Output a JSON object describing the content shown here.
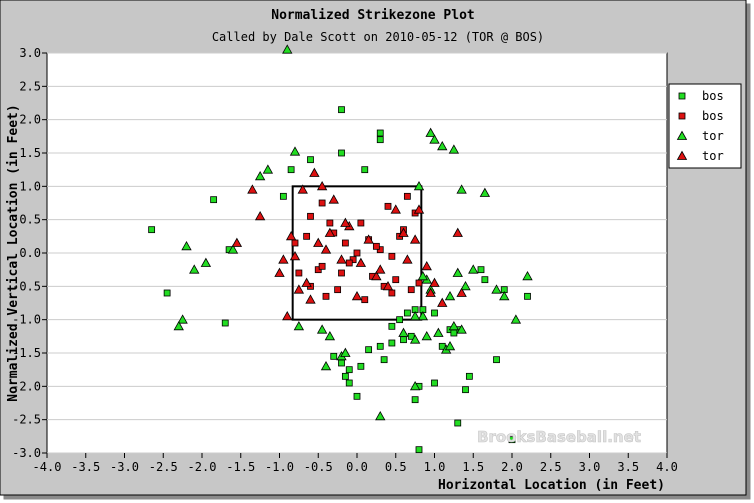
{
  "chart_data": {
    "type": "scatter",
    "title": "Normalized Strikezone Plot",
    "subtitle": "Called by Dale Scott on 2010-05-12 (TOR @ BOS)",
    "xlabel": "Horizontal Location (in Feet)",
    "ylabel": "Normalized Vertical Location (in Feet)",
    "xlim": [
      -4.0,
      4.0
    ],
    "ylim": [
      -3.0,
      3.0
    ],
    "xticks": [
      "-4.0",
      "-3.5",
      "-3.0",
      "-2.5",
      "-2.0",
      "-1.5",
      "-1.0",
      "-0.5",
      "0.0",
      "0.5",
      "1.0",
      "1.5",
      "2.0",
      "2.5",
      "3.0",
      "3.5",
      "4.0"
    ],
    "yticks": [
      "3.0",
      "2.5",
      "2.0",
      "1.5",
      "1.0",
      "0.5",
      "0.0",
      "-0.5",
      "-1.0",
      "-1.5",
      "-2.0",
      "-2.5",
      "-3.0"
    ],
    "grid": true,
    "legend_position": "right",
    "watermark": "BrooksBaseball.net",
    "strike_zone": {
      "x": [
        -0.83,
        0.83
      ],
      "y": [
        -1.0,
        1.0
      ]
    },
    "colors": {
      "ball": "#22dd22",
      "strike": "#dd1111",
      "frame": "#000000",
      "grid": "#cccccc"
    },
    "series": [
      {
        "name": "bos",
        "shape": "square",
        "color": "#22dd22",
        "x": [
          -2.65,
          -2.45,
          -1.65,
          -1.7,
          -1.85,
          -0.95,
          -0.85,
          -0.6,
          -0.2,
          -0.2,
          0.1,
          0.3,
          0.3,
          -0.1,
          -0.15,
          -0.1,
          0.0,
          0.15,
          0.3,
          0.35,
          0.45,
          0.6,
          0.75,
          0.8,
          0.8,
          -0.2,
          -0.3,
          0.05,
          0.7,
          0.85,
          0.95,
          1.0,
          1.2,
          1.3,
          1.4,
          1.8,
          1.65,
          1.6,
          1.9,
          2.0,
          2.2,
          1.0,
          1.3,
          1.15,
          1.1,
          1.25,
          1.45,
          0.75,
          0.65,
          0.55,
          0.45
        ],
        "y": [
          0.35,
          -0.6,
          0.05,
          -1.05,
          0.8,
          0.85,
          1.25,
          1.4,
          2.15,
          1.5,
          1.25,
          1.8,
          1.7,
          -1.75,
          -1.85,
          -1.95,
          -2.15,
          -1.45,
          -1.4,
          -1.6,
          -1.35,
          -1.3,
          -2.2,
          -2.0,
          -2.95,
          -1.65,
          -1.55,
          -1.7,
          -1.25,
          -0.85,
          -0.6,
          -0.9,
          -1.15,
          -2.55,
          -2.05,
          -1.6,
          -0.4,
          -0.25,
          -0.55,
          -2.8,
          -0.65,
          -1.95,
          -1.15,
          -1.45,
          -1.4,
          -1.2,
          -1.85,
          -0.85,
          -0.9,
          -1.0,
          -1.1
        ]
      },
      {
        "name": "bos",
        "shape": "square",
        "color": "#dd1111",
        "x": [
          -0.75,
          -0.6,
          -0.45,
          -0.3,
          -0.15,
          -0.05,
          0.05,
          0.15,
          0.3,
          0.45,
          0.55,
          0.65,
          0.75,
          -0.6,
          -0.4,
          -0.25,
          -0.1,
          0.1,
          0.2,
          0.35,
          0.5,
          0.6,
          0.7,
          -0.65,
          -0.35,
          -0.2,
          0.0,
          0.25,
          0.4,
          -0.5,
          -0.8,
          0.8,
          -0.45,
          0.45
        ],
        "y": [
          -0.3,
          0.55,
          0.75,
          0.3,
          0.15,
          -0.1,
          0.45,
          0.2,
          0.05,
          -0.05,
          0.25,
          0.85,
          0.6,
          -0.5,
          -0.65,
          -0.55,
          -0.15,
          -0.7,
          -0.35,
          -0.5,
          -0.4,
          0.35,
          -0.55,
          0.25,
          0.45,
          -0.3,
          0.0,
          0.1,
          0.7,
          -0.25,
          0.15,
          -0.45,
          -0.2,
          -0.6
        ]
      },
      {
        "name": "tor",
        "shape": "triangle",
        "color": "#22dd22",
        "x": [
          -0.9,
          -0.8,
          -1.15,
          -1.25,
          -1.6,
          -1.95,
          -2.1,
          -2.2,
          -2.25,
          -2.3,
          -0.75,
          -0.45,
          -0.35,
          -0.2,
          -0.15,
          -0.4,
          0.3,
          0.75,
          0.9,
          0.95,
          1.0,
          1.1,
          1.25,
          1.35,
          1.65,
          1.8,
          1.9,
          2.05,
          2.2,
          0.95,
          1.2,
          1.3,
          1.4,
          0.85,
          0.9,
          1.05,
          1.15,
          1.2,
          1.25,
          0.6,
          0.75,
          0.8,
          0.85,
          1.35,
          1.5,
          0.75
        ],
        "y": [
          3.05,
          1.52,
          1.25,
          1.15,
          0.05,
          -0.15,
          -0.25,
          0.1,
          -1.0,
          -1.1,
          -1.1,
          -1.15,
          -1.25,
          -1.55,
          -1.5,
          -1.7,
          -2.45,
          -2.0,
          -0.4,
          1.8,
          1.7,
          1.6,
          1.55,
          0.95,
          0.9,
          -0.55,
          -0.65,
          -1.0,
          -0.35,
          -0.55,
          -0.65,
          -0.3,
          -0.5,
          -0.95,
          -1.25,
          -1.2,
          -1.45,
          -1.4,
          -1.1,
          -1.2,
          -0.95,
          1.0,
          -0.35,
          -1.15,
          -0.25,
          -1.3
        ]
      },
      {
        "name": "tor",
        "shape": "triangle",
        "color": "#dd1111",
        "x": [
          -1.25,
          -1.35,
          -1.55,
          -0.95,
          -0.85,
          -0.7,
          -0.55,
          -0.45,
          -0.35,
          -0.2,
          -0.1,
          0.05,
          0.25,
          0.4,
          0.6,
          0.75,
          0.8,
          -0.75,
          -0.6,
          -0.4,
          -0.3,
          -0.15,
          0.0,
          0.15,
          0.3,
          0.5,
          0.65,
          -0.9,
          -1.0,
          -0.8,
          -0.65,
          -0.5,
          0.9,
          1.0,
          1.1,
          1.3,
          1.35,
          0.95
        ],
        "y": [
          0.55,
          0.95,
          0.15,
          -0.1,
          0.25,
          0.95,
          1.2,
          1.0,
          0.3,
          -0.1,
          0.4,
          -0.15,
          -0.35,
          -0.5,
          0.3,
          0.2,
          0.65,
          -0.55,
          -0.7,
          0.05,
          0.8,
          0.45,
          -0.65,
          0.2,
          -0.25,
          0.65,
          -0.1,
          -0.95,
          -0.3,
          -0.05,
          -0.45,
          0.15,
          -0.2,
          -0.45,
          -0.75,
          0.3,
          -0.6,
          -0.6
        ]
      }
    ]
  }
}
